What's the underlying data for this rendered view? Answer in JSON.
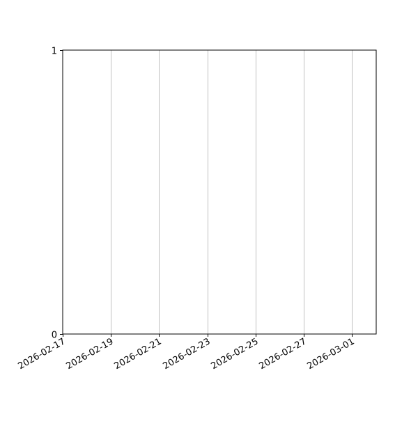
{
  "chart_data": {
    "type": "line",
    "title": "",
    "xlabel": "",
    "ylabel": "",
    "x_axis_type": "date",
    "xlim": [
      "2026-02-17",
      "2026-03-02"
    ],
    "ylim": [
      0,
      1
    ],
    "x_ticks": [
      "2026-02-17",
      "2026-02-19",
      "2026-02-21",
      "2026-02-23",
      "2026-02-25",
      "2026-02-27",
      "2026-03-01"
    ],
    "y_ticks": [
      "0",
      "1"
    ],
    "x_tick_label_rotation": 30,
    "grid": {
      "x": true,
      "y": false,
      "color": "#b0b0b0"
    },
    "series": []
  }
}
